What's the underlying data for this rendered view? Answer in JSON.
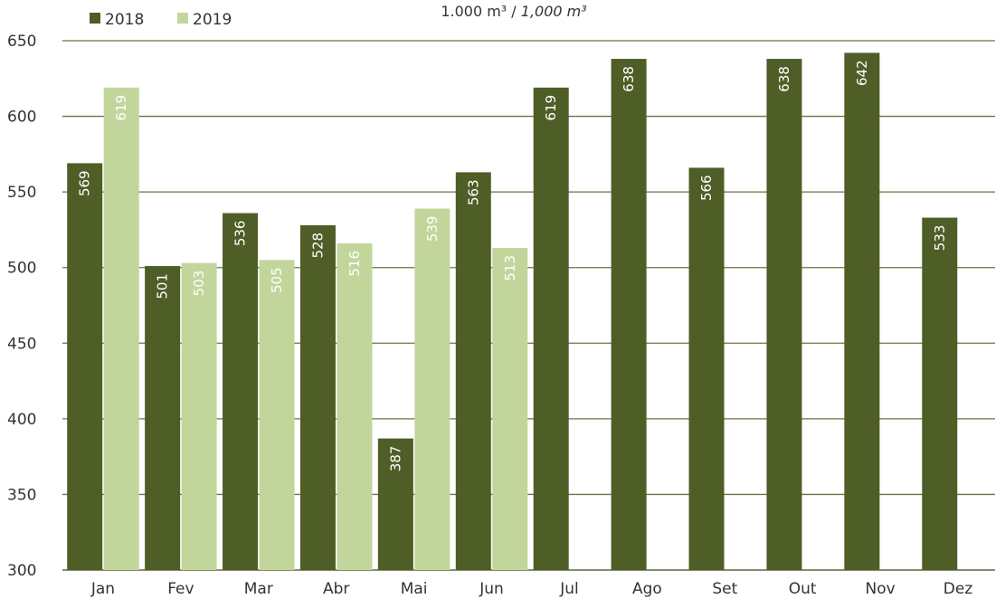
{
  "header": {
    "unit_prefix": "1.000 m³ / ",
    "unit_italic": "1,000 m³"
  },
  "chart_data": {
    "type": "bar",
    "categories": [
      "Jan",
      "Fev",
      "Mar",
      "Abr",
      "Mai",
      "Jun",
      "Jul",
      "Ago",
      "Set",
      "Out",
      "Nov",
      "Dez"
    ],
    "series": [
      {
        "name": "2018",
        "color": "#4e5e26",
        "values": [
          569,
          501,
          536,
          528,
          387,
          563,
          619,
          638,
          566,
          638,
          642,
          533
        ]
      },
      {
        "name": "2019",
        "color": "#c2d69b",
        "values": [
          619,
          503,
          505,
          516,
          539,
          513,
          null,
          null,
          null,
          null,
          null,
          null
        ]
      }
    ],
    "ylim": [
      300,
      650
    ],
    "yticks": [
      300,
      350,
      400,
      450,
      500,
      550,
      600,
      650
    ],
    "grid": true,
    "legend_position": "top-left",
    "data_labels": "rotated-inside-top"
  }
}
